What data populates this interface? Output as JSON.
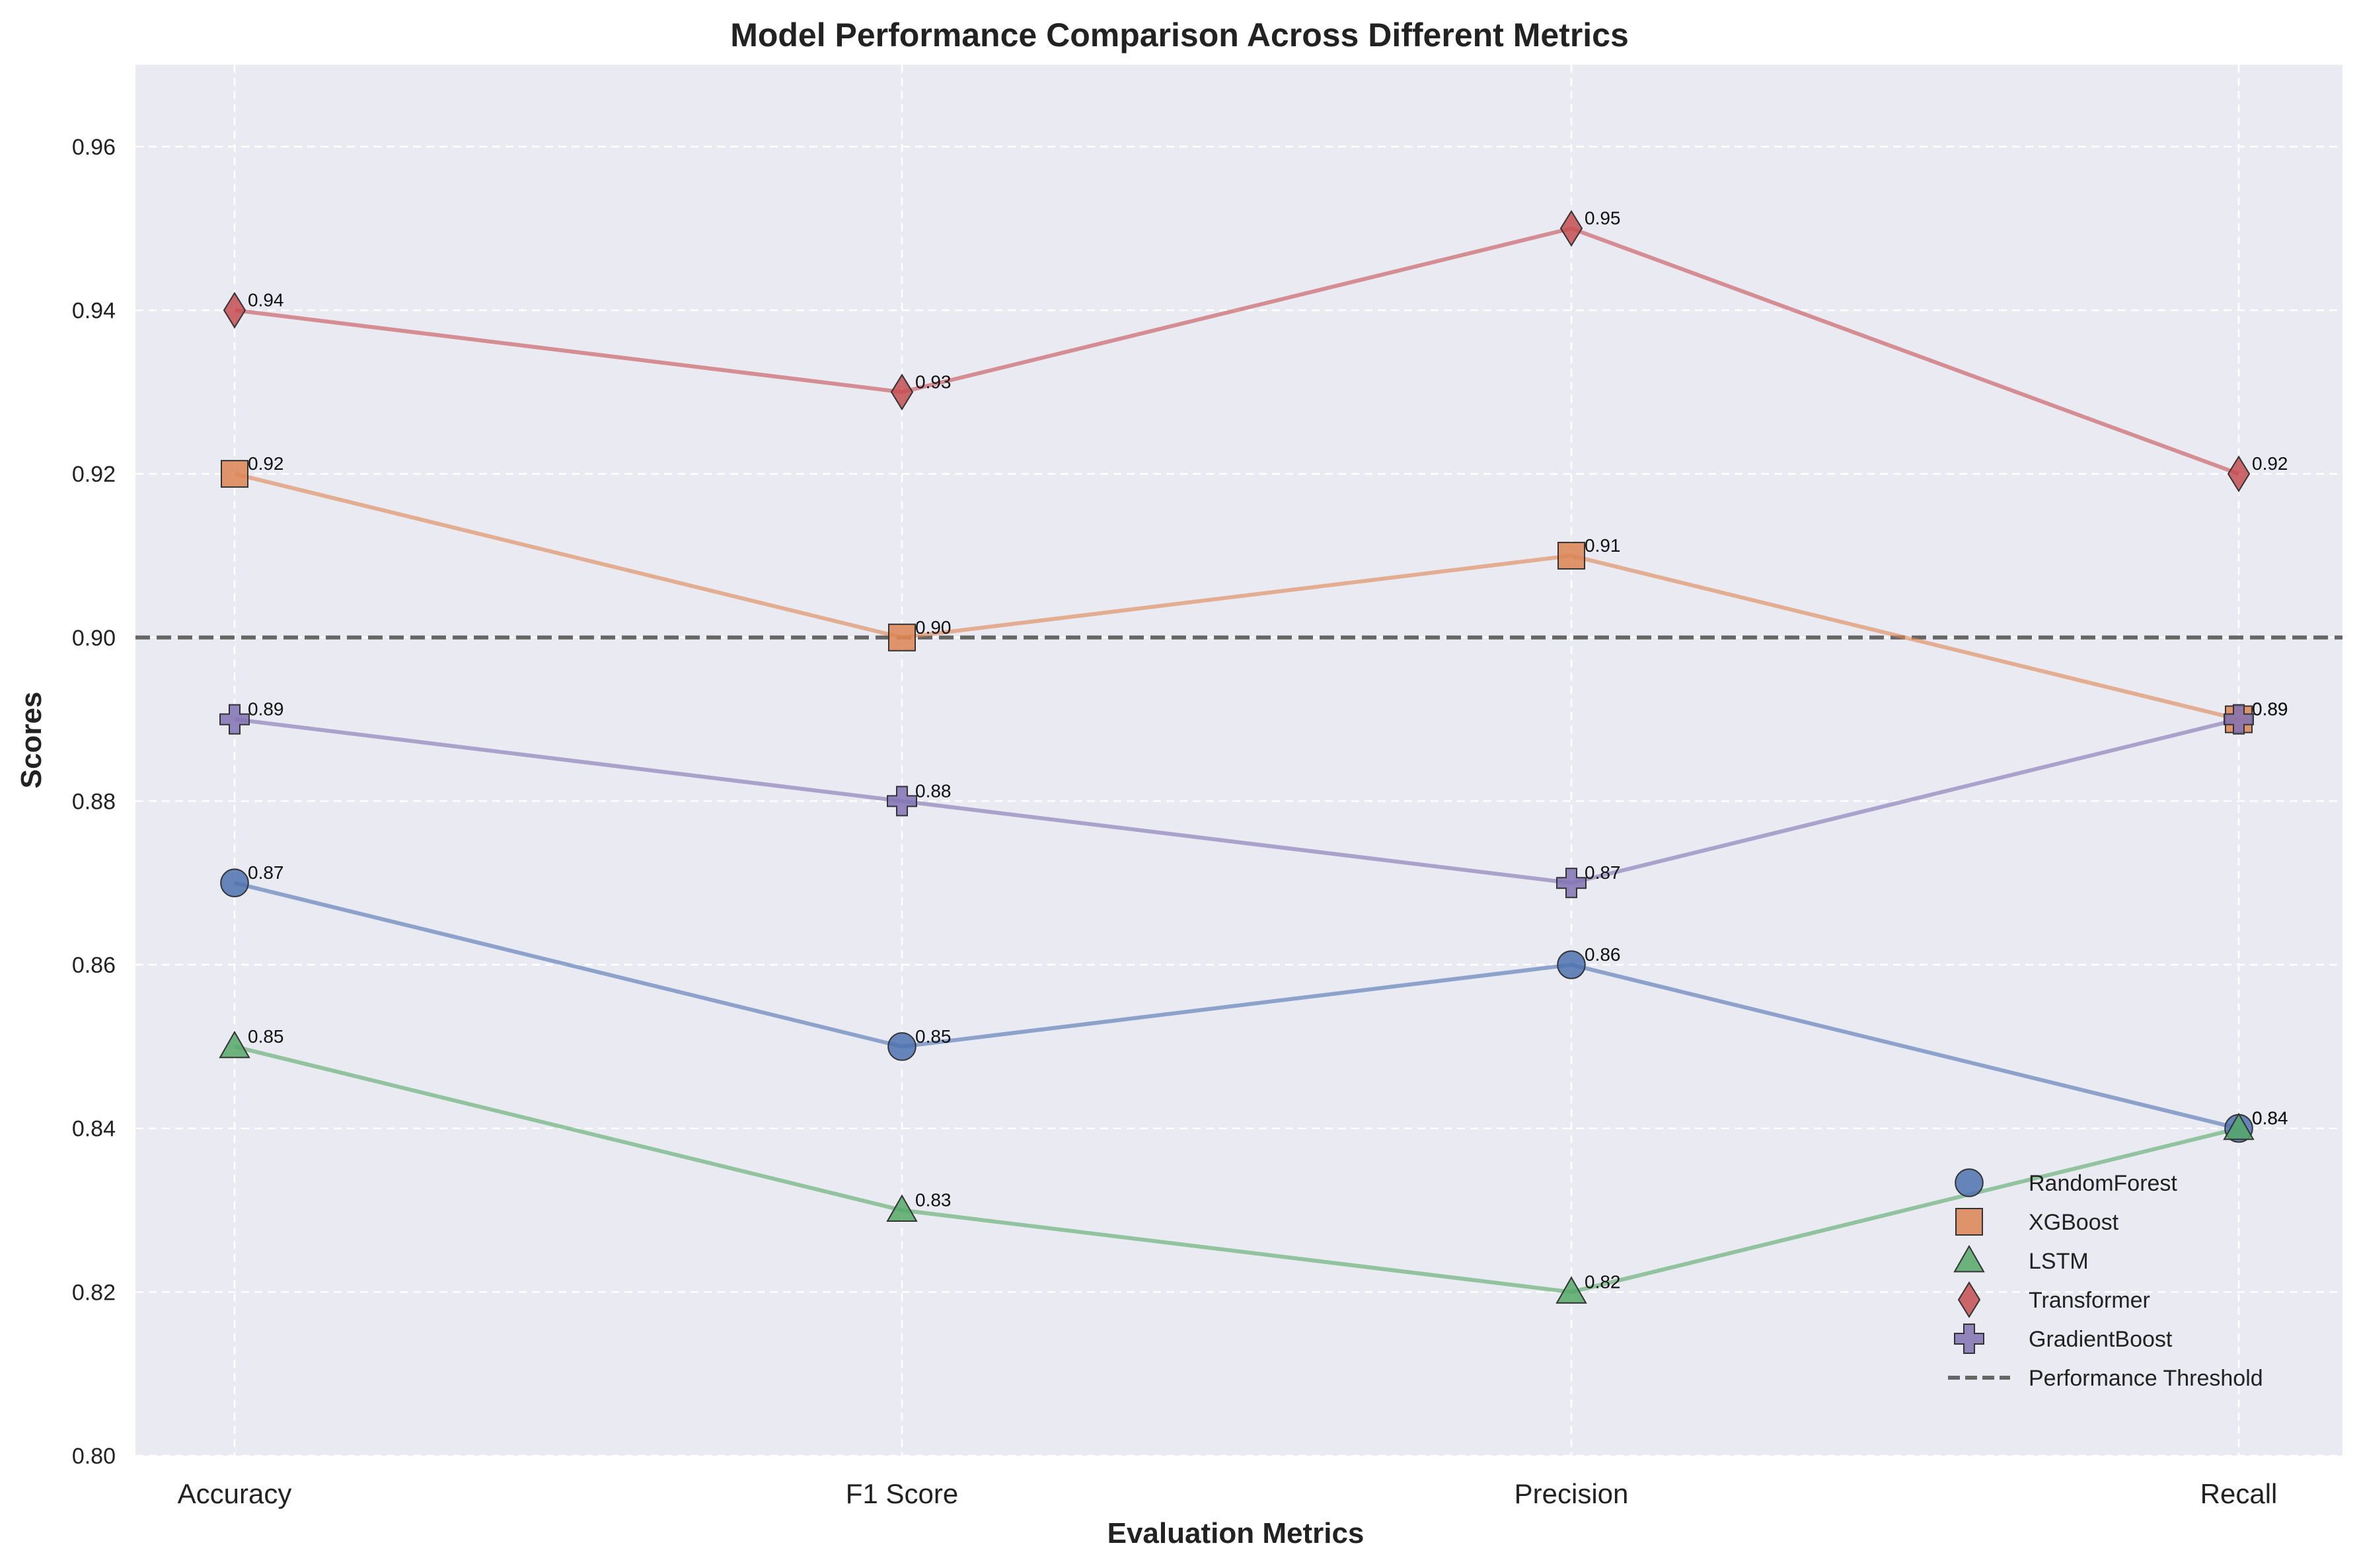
{
  "chart_data": {
    "type": "line",
    "title": "Model Performance Comparison Across Different Metrics",
    "xlabel": "Evaluation Metrics",
    "ylabel": "Scores",
    "categories": [
      "Accuracy",
      "F1 Score",
      "Precision",
      "Recall"
    ],
    "ylim": [
      0.8,
      0.97
    ],
    "yticks": [
      "0.80",
      "0.82",
      "0.84",
      "0.86",
      "0.88",
      "0.90",
      "0.92",
      "0.94",
      "0.96"
    ],
    "grid": true,
    "legend_position": "lower-right",
    "series": [
      {
        "name": "RandomForest",
        "values": [
          0.87,
          0.85,
          0.86,
          0.84
        ],
        "color": "#4c72b0",
        "marker": "circle",
        "labels": [
          "0.87",
          "0.85",
          "0.86",
          "0.84"
        ]
      },
      {
        "name": "XGBoost",
        "values": [
          0.92,
          0.9,
          0.91,
          0.89
        ],
        "color": "#dd8452",
        "marker": "square",
        "labels": [
          "0.92",
          "0.90",
          "0.91",
          "0.89"
        ]
      },
      {
        "name": "LSTM",
        "values": [
          0.85,
          0.83,
          0.82,
          0.84
        ],
        "color": "#55a868",
        "marker": "triangle",
        "labels": [
          "0.85",
          "0.83",
          "0.82",
          "0.84"
        ]
      },
      {
        "name": "Transformer",
        "values": [
          0.94,
          0.93,
          0.95,
          0.92
        ],
        "color": "#c44e52",
        "marker": "diamond",
        "labels": [
          "0.94",
          "0.93",
          "0.95",
          "0.92"
        ]
      },
      {
        "name": "GradientBoost",
        "values": [
          0.89,
          0.88,
          0.87,
          0.89
        ],
        "color": "#8172b3",
        "marker": "plus",
        "labels": [
          "0.89",
          "0.88",
          "0.87",
          "0.89"
        ]
      }
    ],
    "threshold": {
      "name": "Performance Threshold",
      "value": 0.9,
      "color": "#666666"
    }
  }
}
